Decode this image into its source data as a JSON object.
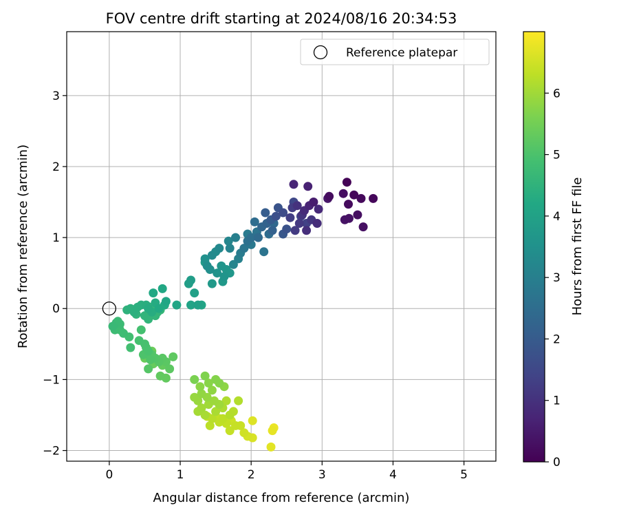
{
  "chart_data": {
    "type": "scatter",
    "title": "FOV centre drift starting at 2024/08/16 20:34:53",
    "xlabel": "Angular distance from reference (arcmin)",
    "ylabel": "Rotation from reference (arcmin)",
    "xlim": [
      -0.6,
      5.45
    ],
    "ylim": [
      -2.15,
      3.9
    ],
    "x_ticks": [
      0,
      1,
      2,
      3,
      4,
      5
    ],
    "y_ticks": [
      -2,
      -1,
      0,
      1,
      2,
      3
    ],
    "grid": true,
    "legend": {
      "position": "top-right",
      "entries": [
        {
          "label": "Reference platepar",
          "marker": "open-circle"
        }
      ]
    },
    "colorbar": {
      "label": "Hours from first FF file",
      "colormap": "viridis",
      "range": [
        0,
        7.0
      ],
      "ticks": [
        0,
        1,
        2,
        3,
        4,
        5,
        6
      ]
    },
    "reference_point": {
      "x": 0,
      "y": 0
    },
    "series": [
      {
        "points": [
          [
            3.35,
            1.78,
            0.05
          ],
          [
            3.45,
            1.6,
            0.1
          ],
          [
            3.72,
            1.55,
            0.12
          ],
          [
            3.55,
            1.55,
            0.15
          ],
          [
            3.37,
            1.47,
            0.2
          ],
          [
            3.1,
            1.58,
            0.22
          ],
          [
            3.3,
            1.62,
            0.25
          ],
          [
            3.5,
            1.32,
            0.28
          ],
          [
            3.58,
            1.15,
            0.3
          ],
          [
            3.38,
            1.27,
            0.33
          ],
          [
            3.32,
            1.25,
            0.36
          ],
          [
            3.08,
            1.55,
            0.45
          ],
          [
            2.88,
            1.5,
            0.55
          ],
          [
            2.8,
            1.72,
            0.65
          ],
          [
            2.82,
            1.45,
            0.7
          ],
          [
            2.6,
            1.75,
            0.75
          ],
          [
            2.95,
            1.4,
            0.8
          ],
          [
            2.75,
            1.38,
            0.85
          ],
          [
            2.93,
            1.2,
            0.9
          ],
          [
            2.78,
            1.1,
            0.95
          ],
          [
            2.65,
            1.45,
            1.0
          ],
          [
            2.72,
            1.32,
            1.05
          ],
          [
            2.85,
            1.25,
            1.1
          ],
          [
            2.68,
            1.2,
            1.15
          ],
          [
            2.62,
            1.1,
            1.2
          ],
          [
            2.58,
            1.42,
            1.25
          ],
          [
            2.55,
            1.28,
            1.3
          ],
          [
            2.78,
            1.2,
            1.35
          ],
          [
            2.7,
            1.3,
            1.4
          ],
          [
            2.6,
            1.5,
            1.5
          ],
          [
            2.45,
            1.35,
            1.6
          ],
          [
            2.35,
            1.3,
            1.7
          ],
          [
            2.5,
            1.12,
            1.75
          ],
          [
            2.38,
            1.42,
            1.8
          ],
          [
            2.45,
            1.05,
            1.9
          ],
          [
            2.28,
            1.25,
            2.0
          ],
          [
            2.2,
            1.35,
            2.05
          ],
          [
            2.3,
            1.1,
            2.15
          ],
          [
            2.22,
            1.2,
            2.2
          ],
          [
            2.15,
            1.15,
            2.3
          ],
          [
            2.32,
            1.2,
            2.35
          ],
          [
            2.1,
            1.0,
            2.4
          ],
          [
            2.25,
            1.05,
            2.45
          ],
          [
            2.05,
            1.22,
            2.5
          ],
          [
            2.0,
            1.0,
            2.55
          ],
          [
            1.95,
            0.95,
            2.6
          ],
          [
            2.08,
            1.08,
            2.65
          ],
          [
            2.18,
            0.8,
            2.7
          ],
          [
            1.9,
            0.85,
            2.75
          ],
          [
            2.0,
            0.9,
            2.8
          ],
          [
            1.95,
            1.05,
            2.85
          ],
          [
            1.85,
            0.78,
            2.9
          ],
          [
            1.78,
            1.0,
            3.0
          ],
          [
            1.82,
            0.7,
            3.05
          ],
          [
            1.7,
            0.85,
            3.1
          ],
          [
            1.75,
            0.62,
            3.15
          ],
          [
            1.68,
            0.95,
            3.2
          ],
          [
            1.55,
            0.85,
            3.25
          ],
          [
            1.45,
            0.75,
            3.3
          ],
          [
            1.5,
            0.8,
            3.35
          ],
          [
            1.38,
            0.6,
            3.4
          ],
          [
            1.42,
            0.55,
            3.45
          ],
          [
            1.35,
            0.7,
            3.5
          ],
          [
            1.52,
            0.5,
            3.55
          ],
          [
            1.62,
            0.45,
            3.6
          ],
          [
            1.58,
            0.6,
            3.62
          ],
          [
            1.65,
            0.55,
            3.65
          ],
          [
            1.7,
            0.5,
            3.68
          ],
          [
            1.6,
            0.38,
            3.72
          ],
          [
            1.45,
            0.35,
            3.75
          ],
          [
            1.35,
            0.65,
            3.78
          ],
          [
            1.15,
            0.4,
            3.85
          ],
          [
            1.12,
            0.35,
            3.9
          ],
          [
            1.2,
            0.22,
            3.95
          ],
          [
            1.25,
            0.05,
            4.0
          ],
          [
            1.15,
            0.05,
            4.05
          ],
          [
            1.3,
            0.05,
            4.08
          ],
          [
            0.95,
            0.05,
            4.12
          ],
          [
            0.8,
            0.1,
            4.15
          ],
          [
            0.75,
            0.28,
            4.18
          ],
          [
            0.62,
            0.22,
            4.2
          ],
          [
            0.7,
            0.0,
            4.22
          ],
          [
            0.78,
            0.05,
            4.25
          ],
          [
            0.65,
            0.08,
            4.28
          ],
          [
            0.55,
            0.0,
            4.3
          ],
          [
            0.6,
            -0.05,
            4.33
          ],
          [
            0.52,
            0.05,
            4.36
          ],
          [
            0.45,
            0.05,
            4.38
          ],
          [
            0.4,
            0.02,
            4.4
          ],
          [
            0.35,
            -0.05,
            4.42
          ],
          [
            0.3,
            0.0,
            4.45
          ],
          [
            0.25,
            -0.02,
            4.48
          ],
          [
            0.38,
            -0.08,
            4.5
          ],
          [
            0.5,
            -0.1,
            4.52
          ],
          [
            0.55,
            -0.15,
            4.55
          ],
          [
            0.65,
            -0.1,
            4.58
          ],
          [
            0.68,
            -0.05,
            4.6
          ],
          [
            0.72,
            -0.02,
            4.62
          ],
          [
            0.58,
            0.02,
            4.65
          ],
          [
            0.05,
            -0.25,
            4.7
          ],
          [
            0.1,
            -0.2,
            4.72
          ],
          [
            0.12,
            -0.18,
            4.74
          ],
          [
            0.15,
            -0.22,
            4.76
          ],
          [
            0.08,
            -0.3,
            4.78
          ],
          [
            0.2,
            -0.35,
            4.8
          ],
          [
            0.15,
            -0.3,
            4.82
          ],
          [
            0.28,
            -0.4,
            4.85
          ],
          [
            0.3,
            -0.55,
            4.88
          ],
          [
            0.45,
            -0.3,
            4.9
          ],
          [
            0.42,
            -0.45,
            4.92
          ],
          [
            0.5,
            -0.5,
            4.95
          ],
          [
            0.55,
            -0.6,
            4.97
          ],
          [
            0.52,
            -0.55,
            5.0
          ],
          [
            0.48,
            -0.65,
            5.02
          ],
          [
            0.58,
            -0.72,
            5.05
          ],
          [
            0.6,
            -0.65,
            5.08
          ],
          [
            0.65,
            -0.7,
            5.1
          ],
          [
            0.55,
            -0.85,
            5.12
          ],
          [
            0.7,
            -0.75,
            5.15
          ],
          [
            0.75,
            -0.7,
            5.18
          ],
          [
            0.8,
            -0.75,
            5.2
          ],
          [
            0.85,
            -0.85,
            5.22
          ],
          [
            0.9,
            -0.68,
            5.25
          ],
          [
            0.72,
            -0.95,
            5.28
          ],
          [
            0.8,
            -0.98,
            5.3
          ],
          [
            0.75,
            -0.8,
            5.32
          ],
          [
            0.62,
            -0.78,
            5.35
          ],
          [
            0.5,
            -0.7,
            5.38
          ],
          [
            0.6,
            -0.6,
            5.4
          ],
          [
            1.2,
            -1.0,
            5.6
          ],
          [
            1.35,
            -0.95,
            5.65
          ],
          [
            1.5,
            -1.0,
            5.7
          ],
          [
            1.55,
            -1.05,
            5.72
          ],
          [
            1.4,
            -1.05,
            5.75
          ],
          [
            1.28,
            -1.1,
            5.78
          ],
          [
            1.62,
            -1.1,
            5.8
          ],
          [
            1.45,
            -1.15,
            5.82
          ],
          [
            1.3,
            -1.2,
            5.85
          ],
          [
            1.38,
            -1.25,
            5.88
          ],
          [
            1.2,
            -1.25,
            5.9
          ],
          [
            1.25,
            -1.3,
            5.92
          ],
          [
            1.48,
            -1.3,
            5.95
          ],
          [
            1.55,
            -1.35,
            5.98
          ],
          [
            1.4,
            -1.35,
            6.0
          ],
          [
            1.3,
            -1.4,
            6.02
          ],
          [
            1.25,
            -1.45,
            6.05
          ],
          [
            1.35,
            -1.5,
            6.08
          ],
          [
            1.5,
            -1.45,
            6.1
          ],
          [
            1.6,
            -1.4,
            6.12
          ],
          [
            1.65,
            -1.3,
            6.15
          ],
          [
            1.82,
            -1.3,
            6.18
          ],
          [
            1.7,
            -1.5,
            6.2
          ],
          [
            1.75,
            -1.45,
            6.22
          ],
          [
            1.45,
            -1.55,
            6.25
          ],
          [
            1.42,
            -1.65,
            6.28
          ],
          [
            1.6,
            -1.55,
            6.3
          ],
          [
            1.55,
            -1.6,
            6.32
          ],
          [
            1.65,
            -1.62,
            6.35
          ],
          [
            1.7,
            -1.72,
            6.38
          ],
          [
            1.78,
            -1.65,
            6.4
          ],
          [
            1.85,
            -1.65,
            6.42
          ],
          [
            1.72,
            -1.58,
            6.45
          ],
          [
            1.9,
            -1.75,
            6.5
          ],
          [
            1.95,
            -1.8,
            6.55
          ],
          [
            2.02,
            -1.82,
            6.6
          ],
          [
            2.02,
            -1.58,
            6.65
          ],
          [
            2.28,
            -1.95,
            6.7
          ],
          [
            2.3,
            -1.72,
            6.75
          ],
          [
            2.32,
            -1.68,
            6.8
          ],
          [
            1.55,
            -1.55,
            6.35
          ],
          [
            1.38,
            -1.52,
            6.33
          ]
        ]
      }
    ]
  }
}
